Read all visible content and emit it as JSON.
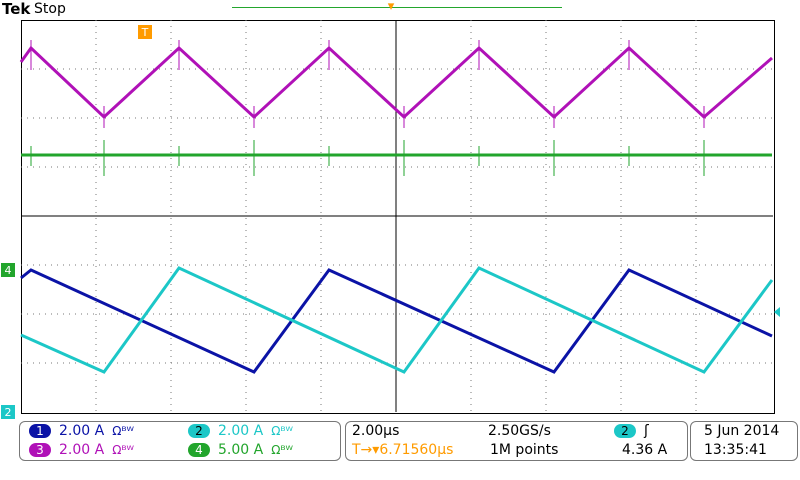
{
  "header": {
    "brand": "Tek",
    "status": "Stop"
  },
  "colors": {
    "ch1": "#0b13a6",
    "ch2": "#1cc7c7",
    "ch3": "#b011b7",
    "ch4": "#22a52c",
    "trigger": "#ff9b00"
  },
  "channels": [
    {
      "num": "1",
      "scale": "2.00 A",
      "coupling": "Ωᴮᵂ"
    },
    {
      "num": "2",
      "scale": "2.00 A",
      "coupling": "Ωᴮᵂ"
    },
    {
      "num": "3",
      "scale": "2.00 A",
      "coupling": "Ωᴮᵂ"
    },
    {
      "num": "4",
      "scale": "5.00 A",
      "coupling": "Ωᴮᵂ"
    }
  ],
  "acquisition": {
    "timebase": "2.00µs",
    "sample_rate": "2.50GS/s",
    "position": "6.71560µs",
    "record_length": "1M points"
  },
  "trigger": {
    "source": "2",
    "slope": "ʃ",
    "level": "4.36 A"
  },
  "datetime": {
    "date": "5 Jun 2014",
    "time": "13:35:41"
  },
  "markers": {
    "trigger_top": "T",
    "ch4_ref": "4",
    "ch2_bottom": "2"
  }
}
